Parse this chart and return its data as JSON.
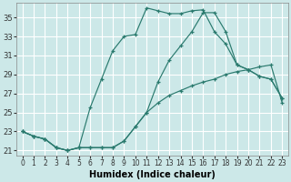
{
  "xlabel": "Humidex (Indice chaleur)",
  "bg_color": "#cce8e8",
  "grid_color": "#ffffff",
  "line_color": "#2a7a6e",
  "xlim": [
    -0.5,
    23.5
  ],
  "ylim": [
    20.5,
    36.5
  ],
  "xticks": [
    0,
    1,
    2,
    3,
    4,
    5,
    6,
    7,
    8,
    9,
    10,
    11,
    12,
    13,
    14,
    15,
    16,
    17,
    18,
    19,
    20,
    21,
    22,
    23
  ],
  "yticks": [
    21,
    23,
    25,
    27,
    29,
    31,
    33,
    35
  ],
  "series": [
    {
      "x": [
        0,
        1,
        2,
        3,
        4,
        5,
        6,
        7,
        8,
        9,
        10,
        11,
        12,
        13,
        14,
        15,
        16,
        17,
        18,
        19,
        20,
        21,
        22,
        23
      ],
      "y": [
        23,
        22.5,
        22.2,
        21.3,
        21.0,
        21.3,
        21.3,
        21.3,
        21.3,
        22.0,
        23.5,
        25.0,
        26.0,
        26.8,
        27.3,
        27.8,
        28.2,
        28.5,
        29.0,
        29.3,
        29.5,
        29.8,
        30.0,
        26.0
      ]
    },
    {
      "x": [
        0,
        1,
        2,
        3,
        4,
        5,
        6,
        7,
        8,
        9,
        10,
        11,
        12,
        13,
        14,
        15,
        16,
        17,
        18,
        19,
        20,
        21,
        22,
        23
      ],
      "y": [
        23,
        22.5,
        22.2,
        21.3,
        21.0,
        21.3,
        25.5,
        28.5,
        31.5,
        33.0,
        33.2,
        36.0,
        35.7,
        35.4,
        35.4,
        35.7,
        35.8,
        33.5,
        32.2,
        30.0,
        29.5,
        28.8,
        28.5,
        26.5
      ]
    },
    {
      "x": [
        0,
        1,
        2,
        3,
        4,
        5,
        6,
        7,
        8,
        9,
        10,
        11,
        12,
        13,
        14,
        15,
        16,
        17,
        18,
        19,
        20,
        21,
        22,
        23
      ],
      "y": [
        23,
        22.5,
        22.2,
        21.3,
        21.0,
        21.3,
        21.3,
        21.3,
        21.3,
        22.0,
        23.5,
        25.0,
        28.2,
        30.5,
        32.0,
        33.5,
        35.5,
        35.5,
        33.5,
        30.0,
        29.5,
        28.8,
        28.5,
        26.5
      ]
    }
  ]
}
